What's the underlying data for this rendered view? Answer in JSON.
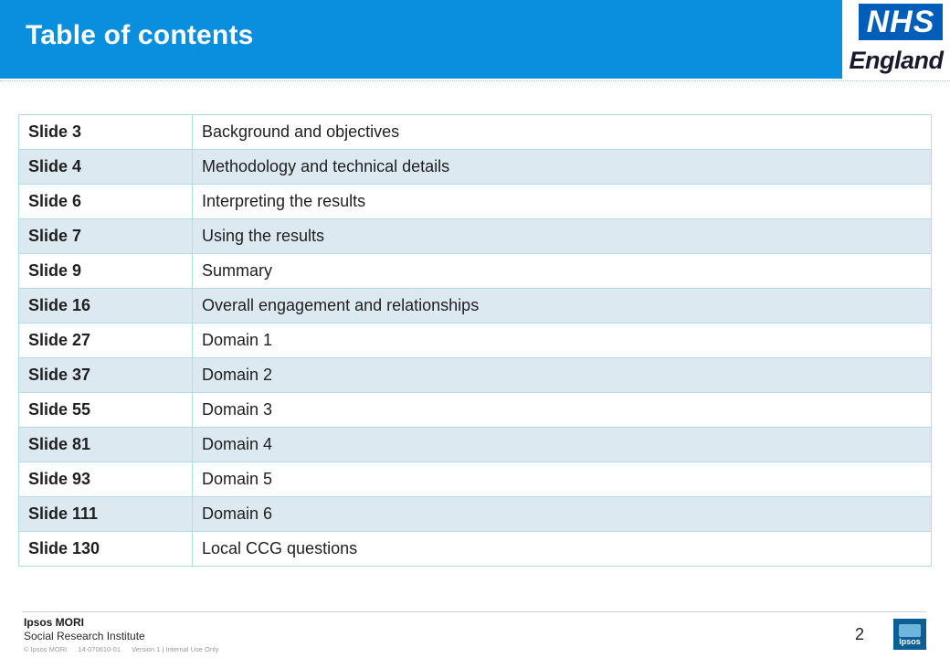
{
  "header": {
    "title": "Table of contents"
  },
  "logo": {
    "badge": "NHS",
    "sub": "England"
  },
  "toc": {
    "rows": [
      {
        "slide": "Slide 3",
        "topic": "Background and objectives"
      },
      {
        "slide": "Slide 4",
        "topic": "Methodology and technical details"
      },
      {
        "slide": "Slide 6",
        "topic": "Interpreting the results"
      },
      {
        "slide": "Slide 7",
        "topic": "Using the results"
      },
      {
        "slide": "Slide 9",
        "topic": "Summary"
      },
      {
        "slide": "Slide 16",
        "topic": "Overall engagement and relationships"
      },
      {
        "slide": "Slide 27",
        "topic": "Domain 1"
      },
      {
        "slide": "Slide 37",
        "topic": "Domain 2"
      },
      {
        "slide": "Slide 55",
        "topic": "Domain 3"
      },
      {
        "slide": "Slide 81",
        "topic": "Domain 4"
      },
      {
        "slide": "Slide 93",
        "topic": "Domain 5"
      },
      {
        "slide": "Slide 111",
        "topic": "Domain 6"
      },
      {
        "slide": "Slide 130",
        "topic": "Local CCG questions"
      }
    ]
  },
  "footer": {
    "brand": "Ipsos MORI",
    "sub": "Social Research Institute",
    "copyright": "© Ipsos MORI",
    "job": "14-070610-01",
    "version": "Version 1 | Internal Use Only",
    "page_number": "2",
    "ipsos_logo_text": "Ipsos"
  },
  "colors": {
    "header_band": "#0a8ede",
    "row_alt": "#dde9f1",
    "nhs_blue": "#005eb8"
  }
}
